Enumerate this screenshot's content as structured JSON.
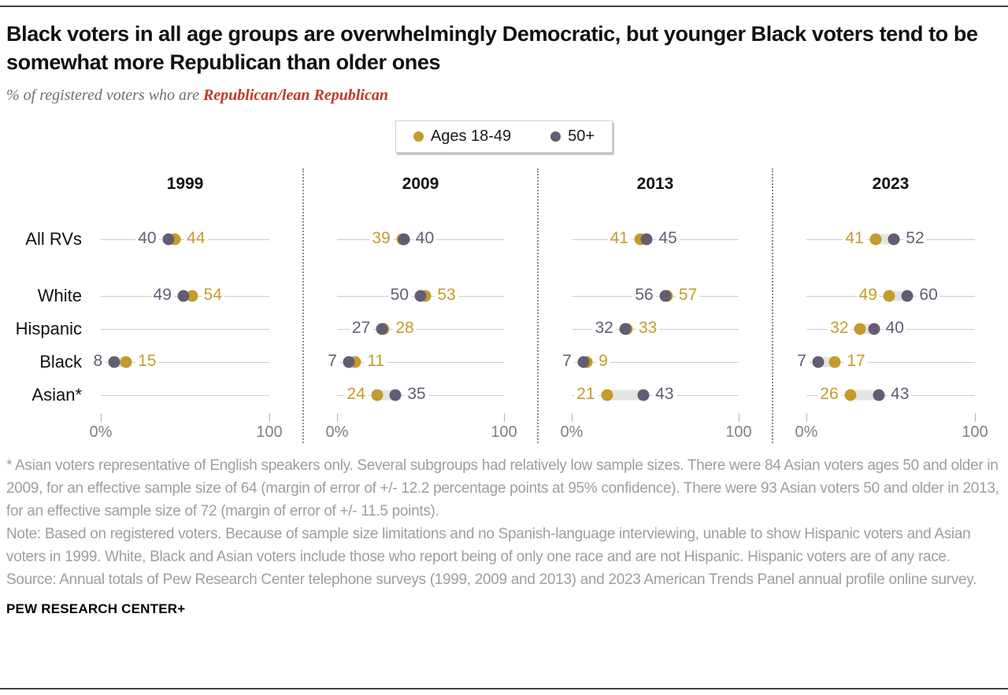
{
  "header": {
    "title": "Black voters in all age groups are overwhelmingly Democratic, but younger Black voters tend to be somewhat more Republican than older ones",
    "subtitle_prefix": "% of registered voters who are ",
    "subtitle_highlight": "Republican/lean Republican"
  },
  "legend": {
    "items": [
      {
        "label": "Ages 18-49",
        "color": "#C49B2C"
      },
      {
        "label": "50+",
        "color": "#645C73"
      }
    ]
  },
  "chart_data": {
    "type": "scatter",
    "variant": "dumbbell-dot-plot",
    "title": "% of registered voters who are Republican/lean Republican",
    "series_names": [
      "Ages 18-49",
      "50+"
    ],
    "series_colors": {
      "ages_18_49": "#C49B2C",
      "ages_50_plus": "#645C73"
    },
    "xlim": [
      0,
      100
    ],
    "x_ticks": [
      0,
      100
    ],
    "x_tick_labels": [
      "0%",
      "100"
    ],
    "grid": false,
    "legend_position": "top-center",
    "row_labels": [
      "All RVs",
      "White",
      "Hispanic",
      "Black",
      "Asian*"
    ],
    "panels": [
      {
        "year": "1999",
        "rows": [
          {
            "group": "All RVs",
            "ages_18_49": 44,
            "ages_50_plus": 40
          },
          {
            "group": "White",
            "ages_18_49": 54,
            "ages_50_plus": 49
          },
          {
            "group": "Hispanic",
            "ages_18_49": null,
            "ages_50_plus": null
          },
          {
            "group": "Black",
            "ages_18_49": 15,
            "ages_50_plus": 8
          },
          {
            "group": "Asian*",
            "ages_18_49": null,
            "ages_50_plus": null
          }
        ]
      },
      {
        "year": "2009",
        "rows": [
          {
            "group": "All RVs",
            "ages_18_49": 39,
            "ages_50_plus": 40
          },
          {
            "group": "White",
            "ages_18_49": 53,
            "ages_50_plus": 50
          },
          {
            "group": "Hispanic",
            "ages_18_49": 28,
            "ages_50_plus": 27
          },
          {
            "group": "Black",
            "ages_18_49": 11,
            "ages_50_plus": 7
          },
          {
            "group": "Asian*",
            "ages_18_49": 24,
            "ages_50_plus": 35
          }
        ]
      },
      {
        "year": "2013",
        "rows": [
          {
            "group": "All RVs",
            "ages_18_49": 41,
            "ages_50_plus": 45
          },
          {
            "group": "White",
            "ages_18_49": 57,
            "ages_50_plus": 56
          },
          {
            "group": "Hispanic",
            "ages_18_49": 33,
            "ages_50_plus": 32
          },
          {
            "group": "Black",
            "ages_18_49": 9,
            "ages_50_plus": 7
          },
          {
            "group": "Asian*",
            "ages_18_49": 21,
            "ages_50_plus": 43
          }
        ]
      },
      {
        "year": "2023",
        "rows": [
          {
            "group": "All RVs",
            "ages_18_49": 41,
            "ages_50_plus": 52
          },
          {
            "group": "White",
            "ages_18_49": 49,
            "ages_50_plus": 60
          },
          {
            "group": "Hispanic",
            "ages_18_49": 32,
            "ages_50_plus": 40
          },
          {
            "group": "Black",
            "ages_18_49": 17,
            "ages_50_plus": 7
          },
          {
            "group": "Asian*",
            "ages_18_49": 26,
            "ages_50_plus": 43
          }
        ]
      }
    ]
  },
  "footnotes": {
    "asterisk": "* Asian voters representative of English speakers only. Several subgroups had relatively low sample sizes. There were 84 Asian voters ages 50 and older in 2009, for an effective sample size of 64 (margin of error of +/- 12.2 percentage points at 95% confidence). There were 93 Asian voters 50 and older in 2013, for an effective sample size of 72 (margin of error of +/- 11.5 points).",
    "note": "Note: Based on registered voters. Because of sample size limitations and no Spanish-language interviewing, unable to show Hispanic voters and Asian voters in 1999. White, Black and Asian voters include those who report being of only one race and are not Hispanic. Hispanic voters are of any race.",
    "source": "Source: Annual totals of Pew Research Center telephone surveys (1999, 2009 and 2013) and 2023 American Trends Panel annual profile online survey."
  },
  "footer": {
    "brand": "PEW RESEARCH CENTER+"
  }
}
